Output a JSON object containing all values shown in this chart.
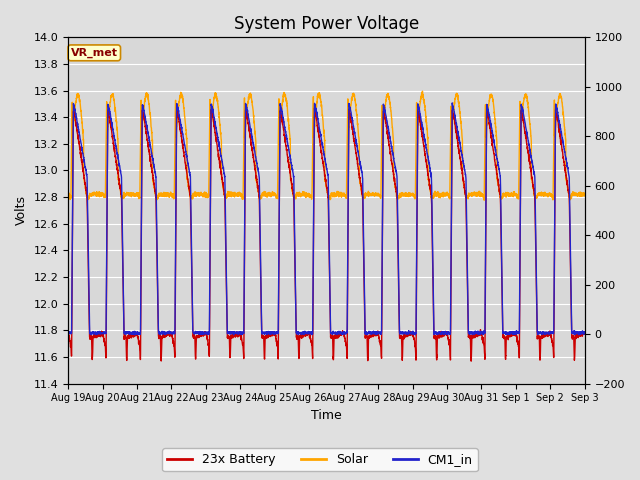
{
  "title": "System Power Voltage",
  "xlabel": "Time",
  "ylabel_left": "Volts",
  "ylabel_right": "",
  "ylim_left": [
    11.4,
    14.0
  ],
  "ylim_right": [
    -200,
    1200
  ],
  "yticks_left": [
    11.4,
    11.6,
    11.8,
    12.0,
    12.2,
    12.4,
    12.6,
    12.8,
    13.0,
    13.2,
    13.4,
    13.6,
    13.8,
    14.0
  ],
  "yticks_right": [
    -200,
    0,
    200,
    400,
    600,
    800,
    1000,
    1200
  ],
  "xtick_labels": [
    "Aug 19",
    "Aug 20",
    "Aug 21",
    "Aug 22",
    "Aug 23",
    "Aug 24",
    "Aug 25",
    "Aug 26",
    "Aug 27",
    "Aug 28",
    "Aug 29",
    "Aug 30",
    "Aug 31",
    "Sep 1",
    "Sep 2",
    "Sep 3"
  ],
  "legend_labels": [
    "23x Battery",
    "Solar",
    "CM1_in"
  ],
  "legend_colors": [
    "#cc0000",
    "#ffa500",
    "#2222cc"
  ],
  "line_colors": {
    "battery": "#cc0000",
    "solar": "#ffa500",
    "cm1": "#2222cc"
  },
  "line_widths": {
    "battery": 1.0,
    "solar": 1.0,
    "cm1": 1.0
  },
  "background_color": "#e0e0e0",
  "plot_bg_color": "#d8d8d8",
  "grid_color": "#ffffff",
  "vr_met_label": "VR_met",
  "vr_met_bg": "#ffffcc",
  "vr_met_border": "#cc8800",
  "vr_met_text_color": "#880000",
  "n_days": 15,
  "title_fontsize": 12,
  "axis_fontsize": 9,
  "tick_fontsize": 8
}
